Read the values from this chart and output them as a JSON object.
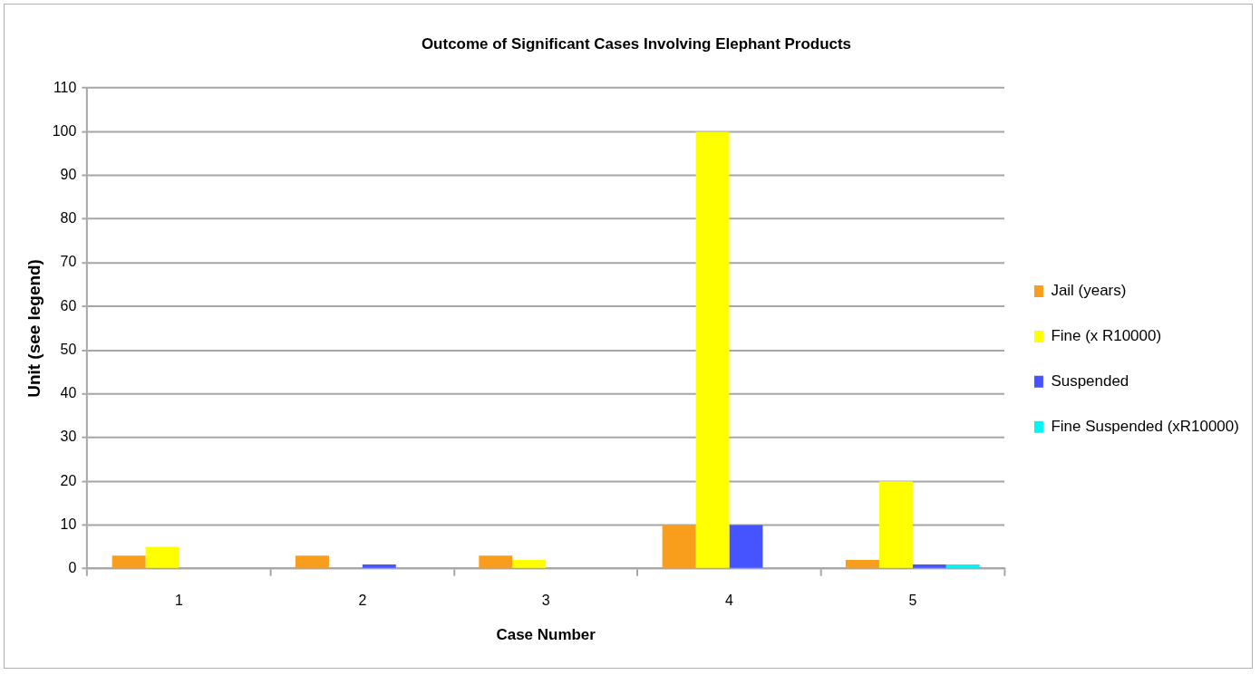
{
  "chart_data": {
    "type": "bar",
    "title": "Outcome of Significant Cases Involving Elephant Products",
    "xlabel": "Case Number",
    "ylabel": "Unit (see legend)",
    "categories": [
      "1",
      "2",
      "3",
      "4",
      "5"
    ],
    "series": [
      {
        "name": "Jail (years)",
        "color": "#f99e1c",
        "values": [
          3,
          3,
          3,
          10,
          2
        ]
      },
      {
        "name": "Fine (x R10000)",
        "color": "#ffff00",
        "values": [
          5,
          null,
          2,
          100,
          20
        ]
      },
      {
        "name": "Suspended",
        "color": "#4654ff",
        "values": [
          null,
          1,
          null,
          10,
          1
        ]
      },
      {
        "name": "Fine Suspended (xR10000)",
        "color": "#00f5f5",
        "values": [
          null,
          null,
          null,
          null,
          1
        ]
      }
    ],
    "ylim": [
      0,
      110
    ],
    "yticks": [
      0,
      10,
      20,
      30,
      40,
      50,
      60,
      70,
      80,
      90,
      100,
      110
    ],
    "grid": "y",
    "legend": "right"
  }
}
